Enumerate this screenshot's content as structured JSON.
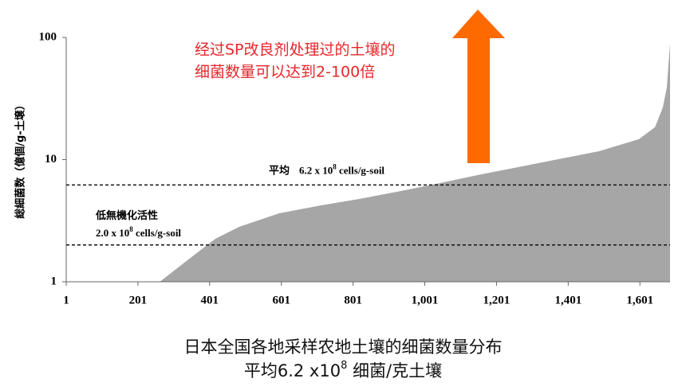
{
  "chart_data": {
    "type": "area",
    "y_label": "総細菌数（億個/g-土壌）",
    "x": [
      262,
      330,
      417,
      484,
      595,
      707,
      818,
      930,
      1041,
      1152,
      1264,
      1375,
      1487,
      1598,
      1643,
      1665,
      1676,
      1685
    ],
    "series": [
      {
        "name": "細菌数",
        "color": "#a6a6a6",
        "values": [
          1,
          1.43,
          2.25,
          2.82,
          3.63,
          4.2,
          4.76,
          5.5,
          6.4,
          7.5,
          8.7,
          10.1,
          11.7,
          14.7,
          18.4,
          26.8,
          39,
          89
        ]
      }
    ],
    "xlim": [
      1,
      1685
    ],
    "xticks": [
      1,
      201,
      401,
      601,
      801,
      {
        "value": 1001,
        "label": "1,001"
      },
      {
        "value": 1201,
        "label": "1,201"
      },
      {
        "value": 1401,
        "label": "1,401"
      },
      {
        "value": 1601,
        "label": "1,601"
      }
    ],
    "ylim": [
      1,
      100
    ],
    "yticks": [
      1,
      10,
      100
    ],
    "log_y": true,
    "reference_lines": [
      {
        "value": 6.2,
        "name": "平均",
        "text": "6.2 x 10",
        "exponent": "8",
        "unit": " cells/g-soil"
      },
      {
        "value": 2.0,
        "name": "低無機化活性",
        "text": "2.0 x 10",
        "exponent": "8",
        "unit": " cells/g-soil"
      }
    ],
    "annotation": [
      "经过SP改良剂处理过的土壤的",
      "细菌数量可以达到2-100倍"
    ],
    "caption": {
      "line1": "日本全国各地采样农地土壤的细菌数量分布",
      "line2_text": "平均6.2 x10",
      "line2_exponent": "8",
      "line2_unit": " 细菌/克土壤"
    }
  }
}
